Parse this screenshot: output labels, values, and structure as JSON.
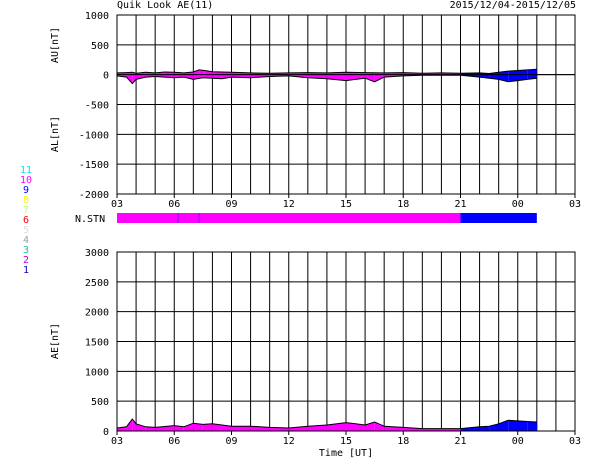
{
  "header": {
    "title": "Quik Look AE(11)",
    "date_range": "2015/12/04-2015/12/05"
  },
  "legend": {
    "stations": [
      {
        "label": "11",
        "color": "#00e5ee"
      },
      {
        "label": "10",
        "color": "#ff00ff"
      },
      {
        "label": "9",
        "color": "#0000ff"
      },
      {
        "label": "8",
        "color": "#ffff00"
      },
      {
        "label": "7",
        "color": "#b4ff7a"
      },
      {
        "label": "6",
        "color": "#ff0000"
      },
      {
        "label": "5",
        "color": "#dddddd"
      },
      {
        "label": "4",
        "color": "#a0a0a0"
      },
      {
        "label": "3",
        "color": "#20c0a0"
      },
      {
        "label": "2",
        "color": "#c000c0"
      },
      {
        "label": "1",
        "color": "#0000c0"
      }
    ]
  },
  "chart_data": [
    {
      "type": "area",
      "name": "AU/AL panel",
      "ylabel_top": "AU[nT]",
      "ylabel_bottom": "AL[nT]",
      "ylim": [
        -2000,
        1000
      ],
      "yticks": [
        "1000",
        "500",
        "0",
        "-500",
        "-1000",
        "-1500",
        "-2000"
      ],
      "xticks": [
        "03",
        "06",
        "09",
        "12",
        "15",
        "18",
        "21",
        "00",
        "03"
      ],
      "xlim_hours": [
        3,
        27
      ],
      "grid": true,
      "segments": [
        {
          "from_hour": 3,
          "to_hour": 21,
          "color": "#ff00ff"
        },
        {
          "from_hour": 21,
          "to_hour": 25,
          "color": "#0000ff"
        }
      ],
      "au": [
        [
          3,
          30
        ],
        [
          3.5,
          35
        ],
        [
          3.8,
          40
        ],
        [
          4,
          25
        ],
        [
          4.5,
          40
        ],
        [
          5,
          30
        ],
        [
          5.5,
          45
        ],
        [
          6,
          40
        ],
        [
          6.5,
          30
        ],
        [
          7,
          45
        ],
        [
          7.3,
          80
        ],
        [
          7.6,
          70
        ],
        [
          8,
          50
        ],
        [
          9,
          40
        ],
        [
          10,
          30
        ],
        [
          11,
          25
        ],
        [
          12,
          30
        ],
        [
          13,
          35
        ],
        [
          14,
          30
        ],
        [
          15,
          40
        ],
        [
          16,
          35
        ],
        [
          17,
          30
        ],
        [
          18,
          35
        ],
        [
          19,
          25
        ],
        [
          20,
          30
        ],
        [
          21,
          25
        ],
        [
          22,
          30
        ],
        [
          22.5,
          20
        ],
        [
          23,
          40
        ],
        [
          23.5,
          60
        ],
        [
          24,
          70
        ],
        [
          24.5,
          80
        ],
        [
          25,
          90
        ]
      ],
      "al": [
        [
          3,
          -20
        ],
        [
          3.5,
          -40
        ],
        [
          3.8,
          -150
        ],
        [
          4,
          -80
        ],
        [
          4.5,
          -40
        ],
        [
          5,
          -30
        ],
        [
          6,
          -50
        ],
        [
          6.5,
          -40
        ],
        [
          7,
          -80
        ],
        [
          7.5,
          -50
        ],
        [
          8,
          -60
        ],
        [
          8.5,
          -70
        ],
        [
          9,
          -40
        ],
        [
          10,
          -50
        ],
        [
          11,
          -30
        ],
        [
          12,
          -20
        ],
        [
          13,
          -50
        ],
        [
          14,
          -70
        ],
        [
          15,
          -100
        ],
        [
          15.5,
          -80
        ],
        [
          16,
          -60
        ],
        [
          16.5,
          -120
        ],
        [
          17,
          -40
        ],
        [
          18,
          -20
        ],
        [
          19,
          -10
        ],
        [
          20,
          -10
        ],
        [
          21,
          -10
        ],
        [
          22,
          -40
        ],
        [
          22.5,
          -60
        ],
        [
          23,
          -80
        ],
        [
          23.5,
          -120
        ],
        [
          24,
          -100
        ],
        [
          24.5,
          -80
        ],
        [
          25,
          -60
        ]
      ]
    },
    {
      "type": "bar",
      "name": "N.STN",
      "ylabel": "N.STN",
      "segments": [
        {
          "from_hour": 3,
          "to_hour": 21,
          "color": "#ff00ff"
        },
        {
          "from_hour": 21,
          "to_hour": 25,
          "color": "#0000ff"
        }
      ],
      "tick_marks_hours": [
        6.2,
        7.3
      ]
    },
    {
      "type": "area",
      "name": "AE panel",
      "ylabel": "AE[nT]",
      "xlabel": "Time [UT]",
      "ylim": [
        0,
        3000
      ],
      "yticks": [
        "3000",
        "2500",
        "2000",
        "1500",
        "1000",
        "500",
        "0"
      ],
      "xticks": [
        "03",
        "06",
        "09",
        "12",
        "15",
        "18",
        "21",
        "00",
        "03"
      ],
      "xlim_hours": [
        3,
        27
      ],
      "grid": true,
      "segments": [
        {
          "from_hour": 3,
          "to_hour": 21,
          "color": "#ff00ff"
        },
        {
          "from_hour": 21,
          "to_hour": 25,
          "color": "#0000ff"
        }
      ],
      "ae": [
        [
          3,
          50
        ],
        [
          3.5,
          70
        ],
        [
          3.8,
          200
        ],
        [
          4,
          120
        ],
        [
          4.5,
          70
        ],
        [
          5,
          60
        ],
        [
          6,
          90
        ],
        [
          6.5,
          70
        ],
        [
          7,
          130
        ],
        [
          7.5,
          110
        ],
        [
          8,
          120
        ],
        [
          8.5,
          100
        ],
        [
          9,
          80
        ],
        [
          10,
          80
        ],
        [
          11,
          60
        ],
        [
          12,
          50
        ],
        [
          13,
          80
        ],
        [
          14,
          100
        ],
        [
          15,
          140
        ],
        [
          15.5,
          120
        ],
        [
          16,
          100
        ],
        [
          16.5,
          150
        ],
        [
          17,
          80
        ],
        [
          18,
          60
        ],
        [
          19,
          40
        ],
        [
          20,
          40
        ],
        [
          21,
          40
        ],
        [
          22,
          70
        ],
        [
          22.5,
          80
        ],
        [
          23,
          120
        ],
        [
          23.5,
          180
        ],
        [
          24,
          170
        ],
        [
          24.5,
          160
        ],
        [
          25,
          150
        ]
      ]
    }
  ]
}
